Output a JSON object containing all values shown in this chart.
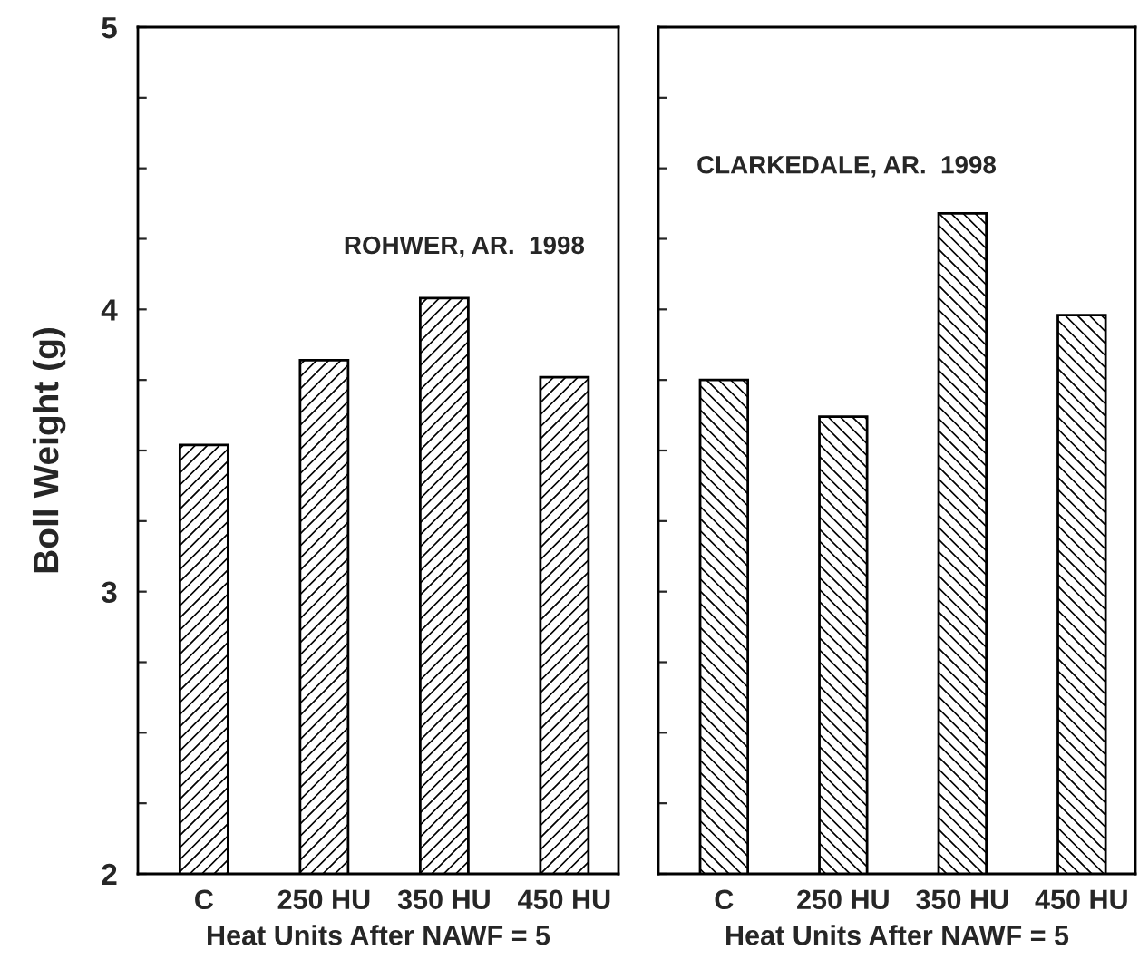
{
  "chart_data": [
    {
      "type": "bar",
      "categories": [
        "C",
        "250 HU",
        "350 HU",
        "450 HU"
      ],
      "values": [
        3.52,
        3.82,
        4.04,
        3.76
      ],
      "color": "#000000",
      "ylim": [
        2,
        5
      ],
      "yticks": [
        2,
        {
          "value": 2.25,
          "label": null
        },
        {
          "value": 2.5,
          "label": null
        },
        {
          "value": 2.75,
          "label": null
        },
        3,
        {
          "value": 3.25,
          "label": null
        },
        {
          "value": 3.5,
          "label": null
        },
        {
          "value": 3.75,
          "label": null
        },
        4,
        {
          "value": 4.25,
          "label": null
        },
        {
          "value": 4.5,
          "label": null
        },
        {
          "value": 4.75,
          "label": null
        },
        5
      ],
      "xlabel": "Heat Units After NAWF = 5",
      "ylabel": "Boll Weight (g)",
      "annotations": [
        "ROHWER, AR.  1998"
      ]
    },
    {
      "type": "bar",
      "categories": [
        "C",
        "250 HU",
        "350 HU",
        "450 HU"
      ],
      "values": [
        3.75,
        3.62,
        4.34,
        3.98
      ],
      "color": "#000000",
      "ylim": [
        2,
        5
      ],
      "yticks": [
        2,
        {
          "value": 2.25,
          "label": null
        },
        {
          "value": 2.5,
          "label": null
        },
        {
          "value": 2.75,
          "label": null
        },
        3,
        {
          "value": 3.25,
          "label": null
        },
        {
          "value": 3.5,
          "label": null
        },
        {
          "value": 3.75,
          "label": null
        },
        4,
        {
          "value": 4.25,
          "label": null
        },
        {
          "value": 4.5,
          "label": null
        },
        {
          "value": 4.75,
          "label": null
        },
        5
      ],
      "tick_labels": "x",
      "xlabel": "Heat Units After NAWF = 5",
      "annotations": [
        "CLARKEDALE, AR.  1998"
      ]
    }
  ]
}
